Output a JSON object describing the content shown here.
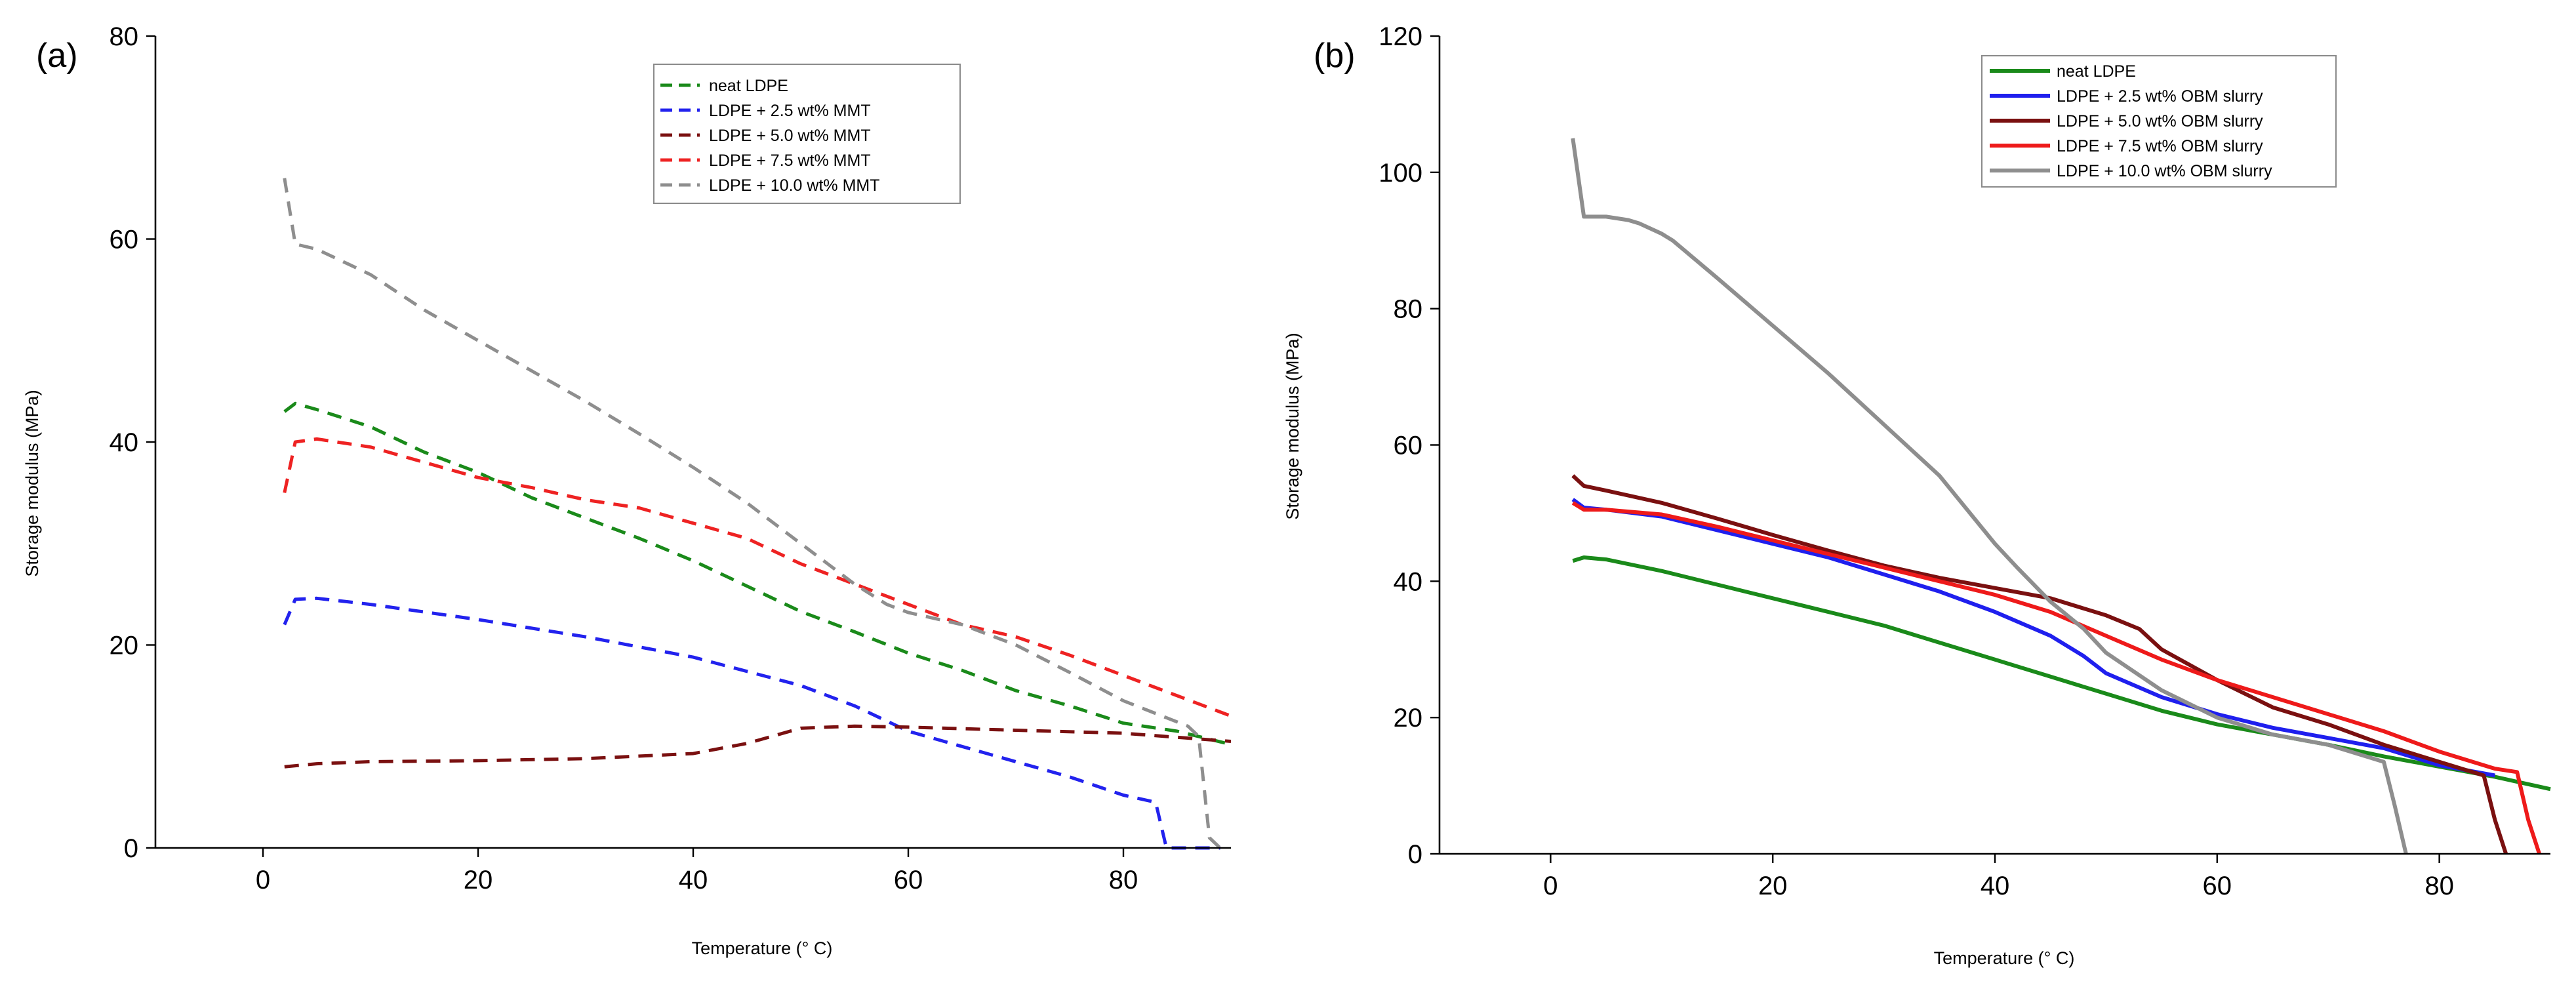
{
  "chart_data": [
    {
      "type": "line",
      "panel_label": "(a)",
      "xlabel": "Temperature (° C)",
      "ylabel": "Storage modulus (MPa)",
      "xlim": [
        -10,
        90
      ],
      "ylim": [
        0,
        80
      ],
      "xticks": [
        0,
        20,
        40,
        60,
        80
      ],
      "yticks": [
        0,
        20,
        40,
        60,
        80
      ],
      "line_style": "dashed",
      "legend_position": "top-center",
      "series": [
        {
          "name": "neat LDPE",
          "color": "#1a8a1a",
          "x": [
            2,
            3,
            5,
            10,
            15,
            20,
            25,
            30,
            35,
            40,
            45,
            50,
            55,
            60,
            65,
            70,
            75,
            80,
            85,
            90
          ],
          "y": [
            43,
            43.8,
            43.2,
            41.5,
            39,
            37,
            34.5,
            32.5,
            30.5,
            28.3,
            25.8,
            23.3,
            21.3,
            19.2,
            17.5,
            15.5,
            14,
            12.3,
            11.5,
            10.2
          ]
        },
        {
          "name": "LDPE + 2.5 wt% MMT",
          "color": "#2222ee",
          "x": [
            2,
            3,
            5,
            10,
            20,
            30,
            40,
            50,
            55,
            60,
            65,
            70,
            75,
            80,
            83,
            84,
            86,
            89
          ],
          "y": [
            22,
            24.5,
            24.6,
            24,
            22.5,
            20.8,
            18.8,
            16,
            14,
            11.5,
            10,
            8.5,
            7,
            5.2,
            4.5,
            0,
            0,
            0
          ]
        },
        {
          "name": "LDPE + 5.0 wt% MMT",
          "color": "#7a1010",
          "x": [
            2,
            5,
            10,
            20,
            30,
            40,
            45,
            50,
            55,
            60,
            70,
            80,
            90
          ],
          "y": [
            8,
            8.3,
            8.5,
            8.6,
            8.8,
            9.3,
            10.3,
            11.8,
            12,
            11.9,
            11.6,
            11.3,
            10.5
          ]
        },
        {
          "name": "LDPE + 7.5 wt% MMT",
          "color": "#ee2222",
          "x": [
            2,
            3,
            5,
            10,
            15,
            20,
            25,
            30,
            35,
            40,
            45,
            50,
            55,
            60,
            65,
            70,
            75,
            80,
            85,
            90
          ],
          "y": [
            35,
            40,
            40.3,
            39.5,
            38,
            36.5,
            35.5,
            34.3,
            33.5,
            32,
            30.5,
            28,
            26,
            24,
            22,
            20.8,
            19,
            17,
            15,
            13
          ]
        },
        {
          "name": "LDPE + 10.0 wt% MMT",
          "color": "#8e8e8e",
          "x": [
            2,
            3,
            5,
            7,
            8,
            10,
            15,
            20,
            25,
            30,
            35,
            40,
            45,
            50,
            55,
            58,
            60,
            65,
            70,
            75,
            80,
            86,
            87,
            88,
            89
          ],
          "y": [
            66,
            59.5,
            59,
            58,
            57.5,
            56.5,
            53,
            50,
            47,
            44,
            40.8,
            37.5,
            34,
            30,
            26,
            24,
            23.2,
            22,
            20,
            17.3,
            14.5,
            12,
            11,
            1,
            0
          ]
        }
      ]
    },
    {
      "type": "line",
      "panel_label": "(b)",
      "xlabel": "Temperature (° C)",
      "ylabel": "Storage modulus (MPa)",
      "xlim": [
        -10,
        90
      ],
      "ylim": [
        0,
        120
      ],
      "xticks": [
        0,
        20,
        40,
        60,
        80
      ],
      "yticks": [
        0,
        20,
        40,
        60,
        80,
        100,
        120
      ],
      "line_style": "solid",
      "legend_position": "top-center",
      "series": [
        {
          "name": "neat LDPE",
          "color": "#1a8a1a",
          "x": [
            2,
            3,
            5,
            10,
            15,
            20,
            25,
            30,
            35,
            40,
            45,
            50,
            55,
            60,
            65,
            70,
            75,
            80,
            85,
            90
          ],
          "y": [
            43,
            43.5,
            43.2,
            41.5,
            39.5,
            37.5,
            35.5,
            33.5,
            31,
            28.5,
            26,
            23.5,
            21,
            19,
            17.5,
            16,
            14.3,
            12.8,
            11.3,
            9.5
          ]
        },
        {
          "name": "LDPE + 2.5 wt% OBM slurry",
          "color": "#1f1fee",
          "x": [
            2,
            3,
            5,
            10,
            15,
            20,
            25,
            30,
            35,
            40,
            45,
            48,
            50,
            55,
            60,
            65,
            70,
            75,
            80,
            85
          ],
          "y": [
            52,
            50.8,
            50.5,
            49.5,
            47.5,
            45.5,
            43.5,
            41,
            38.5,
            35.5,
            32,
            29,
            26.5,
            23,
            20.5,
            18.5,
            17,
            15.5,
            13,
            11.5
          ]
        },
        {
          "name": "LDPE + 5.0 wt% OBM slurry",
          "color": "#7a1010",
          "x": [
            2,
            3,
            5,
            10,
            15,
            20,
            25,
            30,
            35,
            40,
            45,
            50,
            53,
            55,
            60,
            65,
            70,
            75,
            80,
            84,
            85,
            86
          ],
          "y": [
            55.5,
            54,
            53.3,
            51.5,
            49.2,
            46.8,
            44.5,
            42.3,
            40.5,
            39,
            37.5,
            35,
            33,
            30,
            25.5,
            21.5,
            19,
            16,
            13.5,
            11.5,
            5,
            0
          ]
        },
        {
          "name": "LDPE + 7.5 wt% OBM slurry",
          "color": "#ee1a1a",
          "x": [
            2,
            3,
            5,
            10,
            15,
            20,
            25,
            30,
            35,
            40,
            45,
            50,
            55,
            60,
            65,
            70,
            75,
            80,
            85,
            87,
            88,
            89
          ],
          "y": [
            51.5,
            50.5,
            50.5,
            49.8,
            48,
            46,
            44,
            42,
            40,
            38,
            35.5,
            32,
            28.5,
            25.5,
            23,
            20.5,
            18,
            15,
            12.5,
            12,
            5,
            0
          ]
        },
        {
          "name": "LDPE + 10.0 wt% OBM slurry",
          "color": "#8e8e8e",
          "x": [
            2,
            3,
            5,
            7,
            8,
            10,
            11,
            15,
            20,
            25,
            30,
            35,
            40,
            42,
            45,
            48,
            50,
            55,
            60,
            65,
            70,
            75,
            76,
            77
          ],
          "y": [
            105,
            93.5,
            93.5,
            93,
            92.5,
            91,
            90,
            84.5,
            77.5,
            70.5,
            63,
            55.5,
            45.5,
            42,
            37,
            33,
            29.5,
            24,
            20,
            17.5,
            16,
            13.5,
            7,
            0
          ]
        }
      ]
    }
  ]
}
